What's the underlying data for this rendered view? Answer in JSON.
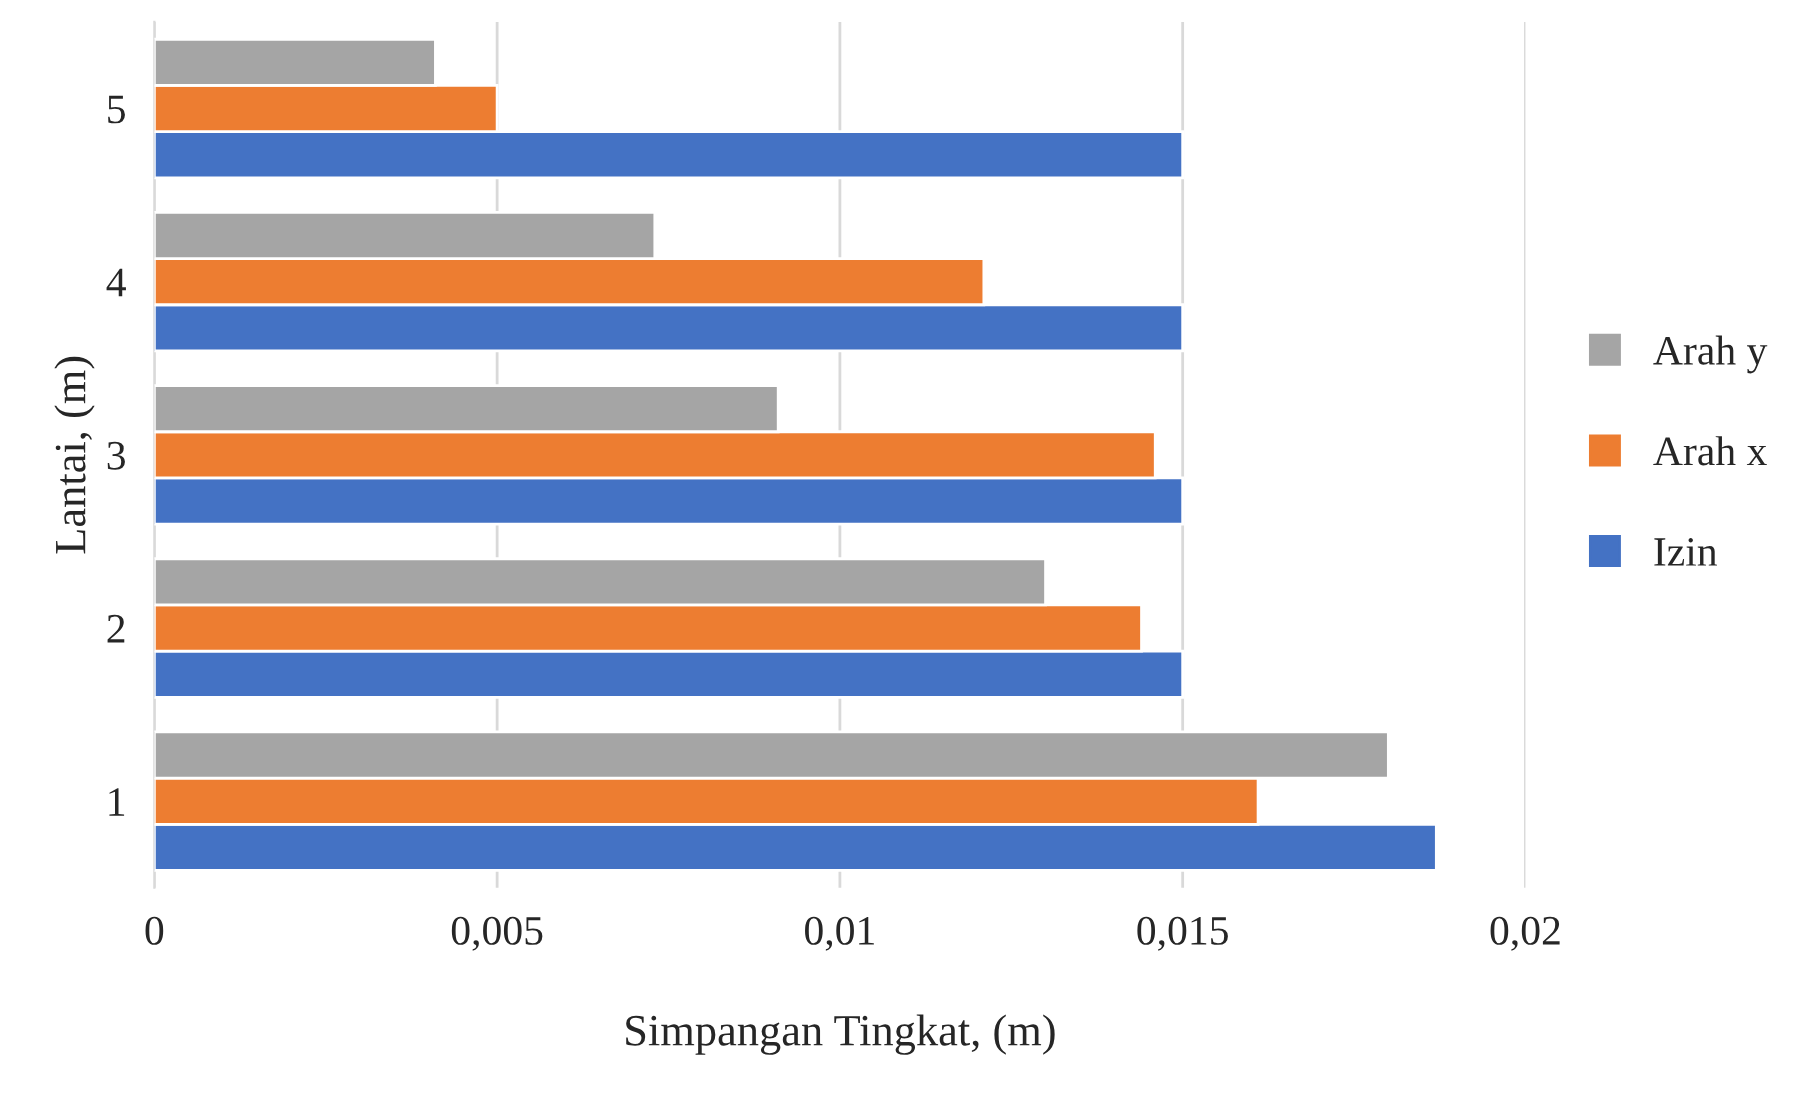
{
  "chart_data": {
    "type": "bar",
    "orientation": "horizontal",
    "xlabel": "Simpangan Tingkat, (m)",
    "ylabel": "Lantai, (m)",
    "categories": [
      "5",
      "4",
      "3",
      "2",
      "1"
    ],
    "series": [
      {
        "name": "Izin",
        "color": "#4472c4",
        "values": [
          0.015,
          0.015,
          0.015,
          0.015,
          0.0187
        ]
      },
      {
        "name": "Arah x",
        "color": "#ed7d31",
        "values": [
          0.005,
          0.0121,
          0.0146,
          0.0144,
          0.0161
        ]
      },
      {
        "name": "Arah y",
        "color": "#a5a5a5",
        "values": [
          0.0041,
          0.0073,
          0.0091,
          0.013,
          0.018
        ]
      }
    ],
    "xlim": [
      0,
      0.02
    ],
    "xticks": [
      0,
      {
        "value": 0.005,
        "label": "0,005"
      },
      {
        "value": 0.01,
        "label": "0,01"
      },
      {
        "value": 0.015,
        "label": "0,015"
      },
      {
        "value": 0.02,
        "label": "0,02"
      }
    ],
    "grid": "x",
    "legend": "right"
  }
}
